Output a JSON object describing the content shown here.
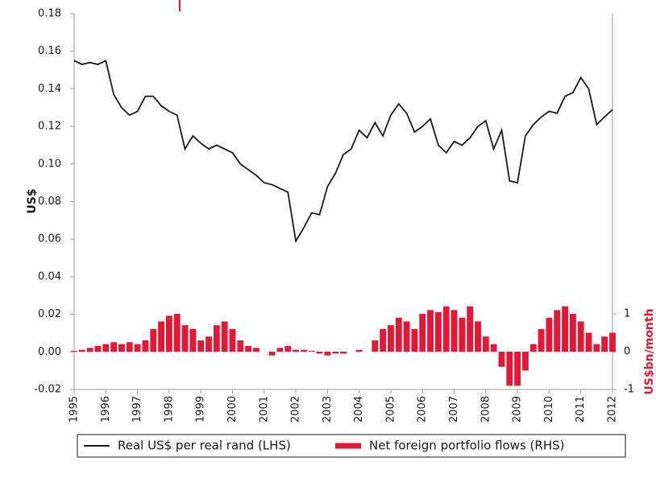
{
  "chart_data": {
    "type": "line-bar",
    "y_label": "US$",
    "y2_label": "US$bn/month",
    "x": [
      1995,
      1995.25,
      1995.5,
      1995.75,
      1996,
      1996.25,
      1996.5,
      1996.75,
      1997,
      1997.25,
      1997.5,
      1997.75,
      1998,
      1998.25,
      1998.5,
      1998.75,
      1999,
      1999.25,
      1999.5,
      1999.75,
      2000,
      2000.25,
      2000.5,
      2000.75,
      2001,
      2001.25,
      2001.5,
      2001.75,
      2002,
      2002.25,
      2002.5,
      2002.75,
      2003,
      2003.25,
      2003.5,
      2003.75,
      2004,
      2004.25,
      2004.5,
      2004.75,
      2005,
      2005.25,
      2005.5,
      2005.75,
      2006,
      2006.25,
      2006.5,
      2006.75,
      2007,
      2007.25,
      2007.5,
      2007.75,
      2008,
      2008.25,
      2008.5,
      2008.75,
      2009,
      2009.25,
      2009.5,
      2009.75,
      2010,
      2010.25,
      2010.5,
      2010.75,
      2011,
      2011.25,
      2011.5,
      2011.75,
      2012
    ],
    "series": [
      {
        "name": "Real US$ per real rand (LHS)",
        "color": "#1a1a1a",
        "kind": "line",
        "values": [
          0.155,
          0.153,
          0.154,
          0.153,
          0.155,
          0.137,
          0.13,
          0.126,
          0.128,
          0.136,
          0.136,
          0.131,
          0.128,
          0.126,
          0.108,
          0.115,
          0.111,
          0.108,
          0.11,
          0.108,
          0.106,
          0.1,
          0.097,
          0.094,
          0.09,
          0.089,
          0.087,
          0.085,
          0.059,
          0.066,
          0.074,
          0.073,
          0.088,
          0.095,
          0.105,
          0.108,
          0.118,
          0.114,
          0.122,
          0.115,
          0.126,
          0.132,
          0.127,
          0.117,
          0.12,
          0.124,
          0.11,
          0.106,
          0.112,
          0.11,
          0.114,
          0.12,
          0.123,
          0.108,
          0.118,
          0.091,
          0.09,
          0.115,
          0.121,
          0.125,
          0.128,
          0.127,
          0.136,
          0.138,
          0.146,
          0.14,
          0.121,
          0.125,
          0.129
        ]
      },
      {
        "name": "Net foreign portfolio flows (RHS)",
        "color": "#e31837",
        "kind": "bar",
        "axis": "y2",
        "values": [
          0.02,
          0.05,
          0.1,
          0.15,
          0.2,
          0.25,
          0.2,
          0.25,
          0.2,
          0.3,
          0.6,
          0.8,
          0.95,
          1.0,
          0.7,
          0.6,
          0.3,
          0.4,
          0.7,
          0.8,
          0.6,
          0.3,
          0.15,
          0.1,
          0,
          -0.1,
          0.1,
          0.15,
          0.05,
          0.05,
          0.02,
          -0.05,
          -0.1,
          -0.05,
          -0.05,
          0,
          0.05,
          0,
          0.3,
          0.6,
          0.7,
          0.9,
          0.8,
          0.6,
          1.0,
          1.1,
          1.05,
          1.2,
          1.1,
          0.9,
          1.2,
          0.8,
          0.4,
          0.2,
          -0.4,
          -0.9,
          -0.9,
          -0.5,
          0.2,
          0.6,
          0.9,
          1.1,
          1.2,
          1.0,
          0.8,
          0.5,
          0.2,
          0.4,
          0.5
        ]
      }
    ],
    "xlim": [
      1995,
      2012
    ],
    "xticks": [
      1995,
      1996,
      1997,
      1998,
      1999,
      2000,
      2001,
      2002,
      2003,
      2004,
      2005,
      2006,
      2007,
      2008,
      2009,
      2010,
      2011,
      2012
    ],
    "ylim": [
      -0.02,
      0.18
    ],
    "yticks": [
      {
        "value": -0.02,
        "label": "-0.02"
      },
      {
        "value": 0,
        "label": "0.00"
      },
      {
        "value": 0.02,
        "label": "0.02"
      },
      {
        "value": 0.04,
        "label": "0.04"
      },
      {
        "value": 0.06,
        "label": "0.06"
      },
      {
        "value": 0.08,
        "label": "0.08"
      },
      {
        "value": 0.1,
        "label": "0.10"
      },
      {
        "value": 0.12,
        "label": "0.12"
      },
      {
        "value": 0.14,
        "label": "0.14"
      },
      {
        "value": 0.16,
        "label": "0.16"
      },
      {
        "value": 0.18,
        "label": "0.18"
      }
    ],
    "y2lim": [
      -1,
      8.94
    ],
    "y2ticks": [
      -1,
      0,
      1
    ],
    "legend": "bottom"
  }
}
